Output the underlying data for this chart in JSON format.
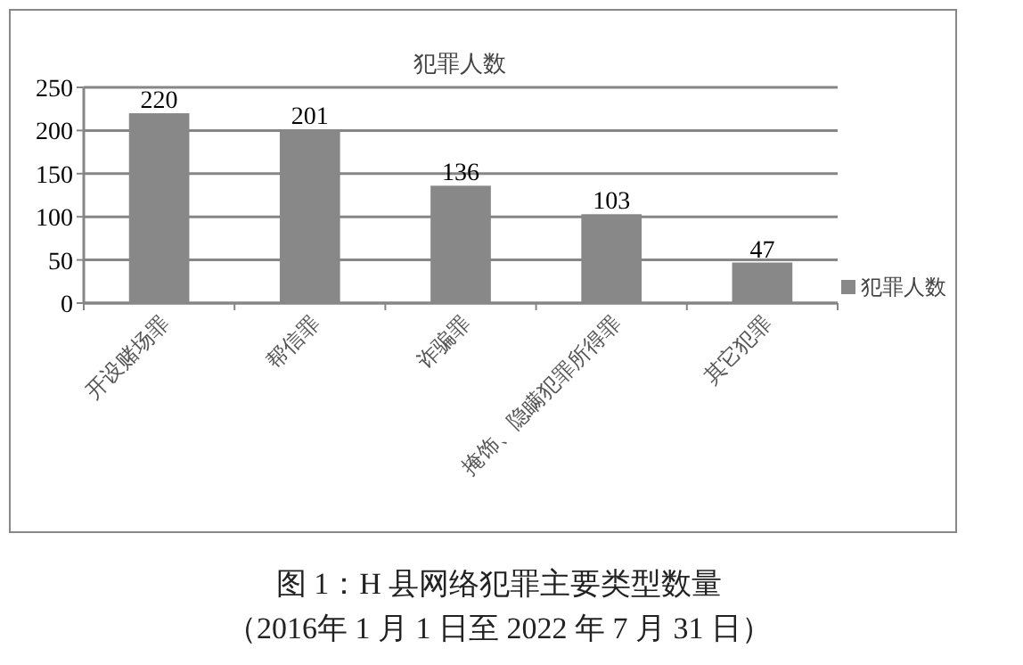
{
  "chart_data": {
    "type": "bar",
    "title": "犯罪人数",
    "categories": [
      "开设赌场罪",
      "帮信罪",
      "诈骗罪",
      "掩饰、隐瞒犯罪所得罪",
      "其它犯罪"
    ],
    "series": [
      {
        "name": "犯罪人数",
        "color": "#888888",
        "values": [
          220,
          201,
          136,
          103,
          47
        ]
      }
    ],
    "ylim": [
      0,
      250
    ],
    "yticks": [
      0,
      50,
      100,
      150,
      200,
      250
    ],
    "grid": "y",
    "legend": "right",
    "data_labels": true,
    "annotations": [
      "图 1：H 县网络犯罪主要类型数量",
      "（2016年 1 月 1 日至 2022 年 7 月 31 日）"
    ]
  }
}
